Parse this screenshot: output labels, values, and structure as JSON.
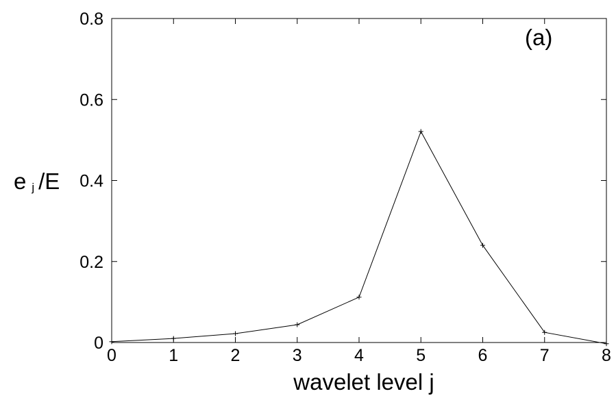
{
  "chart_data": {
    "type": "line",
    "panel_label": "(a)",
    "xlabel": "wavelet level j",
    "ylabel": {
      "main": "e",
      "subscript": "j",
      "suffix": "/E"
    },
    "xlim": [
      0,
      8
    ],
    "ylim": [
      0,
      0.8
    ],
    "x_ticks": [
      0,
      1,
      2,
      3,
      4,
      5,
      6,
      7,
      8
    ],
    "x_tick_labels": [
      "0",
      "1",
      "2",
      "3",
      "4",
      "5",
      "6",
      "7",
      "8"
    ],
    "y_ticks": [
      0,
      0.2,
      0.4,
      0.6,
      0.8
    ],
    "y_tick_labels": [
      "0",
      "0.2",
      "0.4",
      "0.6",
      "0.8"
    ],
    "grid": false,
    "series": [
      {
        "marker": "+",
        "color": "#000000",
        "x": [
          0,
          1,
          2,
          3,
          4,
          5,
          6,
          7,
          8
        ],
        "y": [
          0.002,
          0.01,
          0.022,
          0.044,
          0.112,
          0.521,
          0.24,
          0.025,
          -0.003
        ]
      }
    ]
  }
}
